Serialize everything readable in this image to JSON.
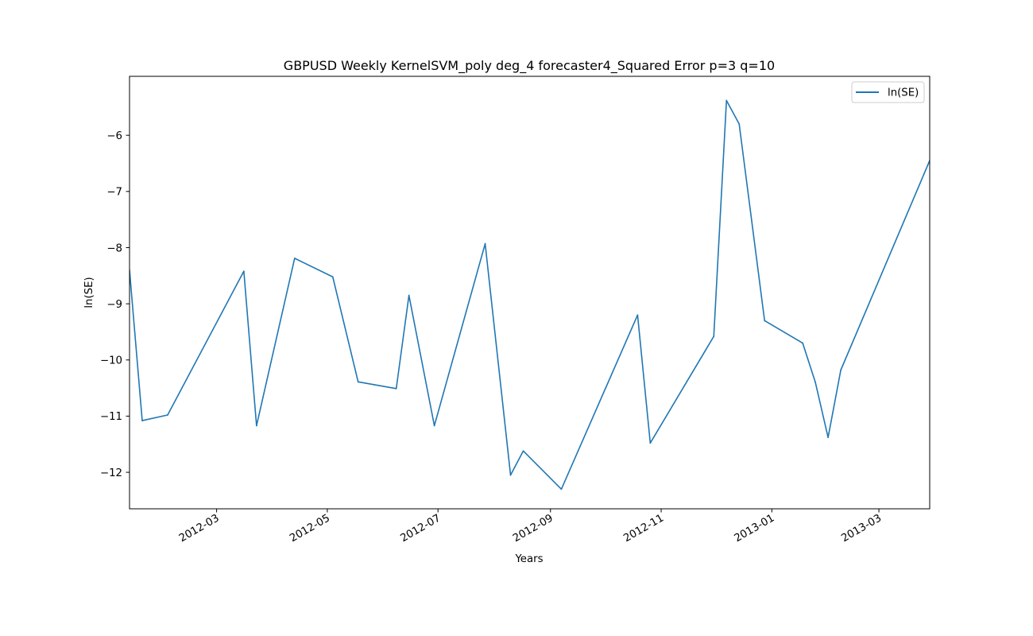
{
  "chart_data": {
    "type": "line",
    "title": "GBPUSD Weekly KernelSVM_poly deg_4 forecaster4_Squared Error p=3 q=10",
    "xlabel": "Years",
    "ylabel": "ln(SE)",
    "xlim": [
      "2012-01-13",
      "2013-03-29"
    ],
    "ylim": [
      -12.65,
      -4.95
    ],
    "x_ticks": [
      {
        "date": "2012-03-01",
        "label": "2012-03"
      },
      {
        "date": "2012-05-01",
        "label": "2012-05"
      },
      {
        "date": "2012-07-01",
        "label": "2012-07"
      },
      {
        "date": "2012-09-01",
        "label": "2012-09"
      },
      {
        "date": "2012-11-01",
        "label": "2012-11"
      },
      {
        "date": "2013-01-01",
        "label": "2013-01"
      },
      {
        "date": "2013-03-01",
        "label": "2013-03"
      }
    ],
    "y_ticks": [
      {
        "value": -6,
        "label": "−6"
      },
      {
        "value": -7,
        "label": "−7"
      },
      {
        "value": -8,
        "label": "−8"
      },
      {
        "value": -9,
        "label": "−9"
      },
      {
        "value": -10,
        "label": "−10"
      },
      {
        "value": -11,
        "label": "−11"
      },
      {
        "value": -12,
        "label": "−12"
      }
    ],
    "grid": false,
    "legend": {
      "position": "top-right"
    },
    "series": [
      {
        "name": "ln(SE)",
        "color": "#1f77b4",
        "points": [
          {
            "x": "2012-01-13",
            "y": -8.4
          },
          {
            "x": "2012-01-20",
            "y": -11.08
          },
          {
            "x": "2012-02-03",
            "y": -10.98
          },
          {
            "x": "2012-03-16",
            "y": -8.42
          },
          {
            "x": "2012-03-23",
            "y": -11.17
          },
          {
            "x": "2012-04-13",
            "y": -8.19
          },
          {
            "x": "2012-05-04",
            "y": -8.52
          },
          {
            "x": "2012-05-18",
            "y": -10.39
          },
          {
            "x": "2012-06-08",
            "y": -10.51
          },
          {
            "x": "2012-06-15",
            "y": -8.85
          },
          {
            "x": "2012-06-29",
            "y": -11.17
          },
          {
            "x": "2012-07-27",
            "y": -7.93
          },
          {
            "x": "2012-08-10",
            "y": -12.05
          },
          {
            "x": "2012-08-17",
            "y": -11.62
          },
          {
            "x": "2012-09-07",
            "y": -12.3
          },
          {
            "x": "2012-10-19",
            "y": -9.2
          },
          {
            "x": "2012-10-26",
            "y": -11.48
          },
          {
            "x": "2012-11-30",
            "y": -9.58
          },
          {
            "x": "2012-12-07",
            "y": -5.38
          },
          {
            "x": "2012-12-14",
            "y": -5.8
          },
          {
            "x": "2012-12-28",
            "y": -9.3
          },
          {
            "x": "2013-01-18",
            "y": -9.7
          },
          {
            "x": "2013-01-25",
            "y": -10.4
          },
          {
            "x": "2013-02-01",
            "y": -11.38
          },
          {
            "x": "2013-02-08",
            "y": -10.18
          },
          {
            "x": "2013-03-29",
            "y": -6.45
          }
        ]
      }
    ]
  }
}
